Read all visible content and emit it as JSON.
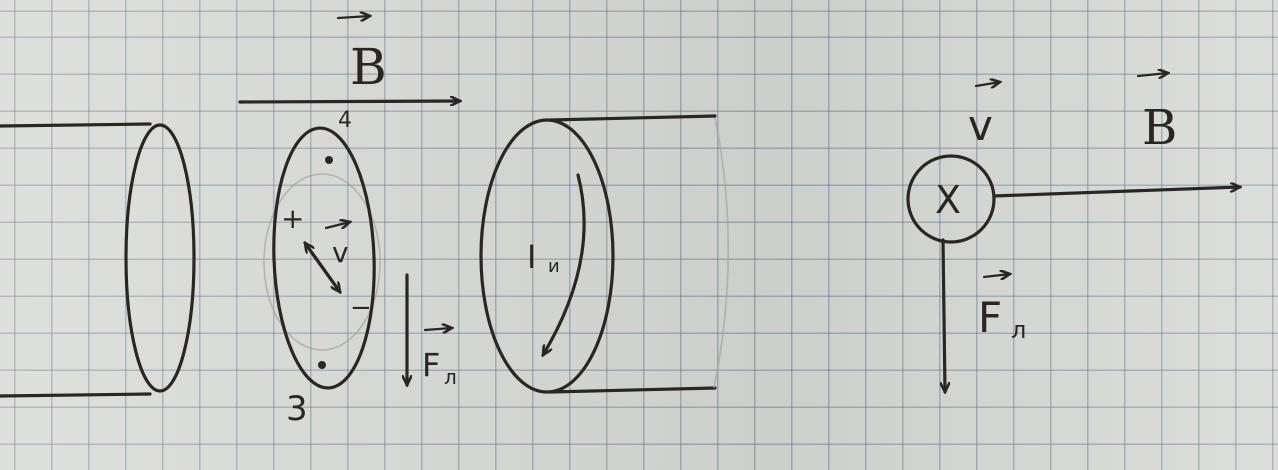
{
  "labels": {
    "b_top": "B",
    "b_right": "B",
    "point_top": "4",
    "point_bottom": "3",
    "plus": "+",
    "minus": "−",
    "velocity_center": "v",
    "current": "I",
    "current_sub": "и",
    "force_center": "F",
    "force_center_sub": "л",
    "velocity_right": "v",
    "cross": "X",
    "force_right": "F",
    "force_right_sub": "л"
  },
  "colors": {
    "ink": "#2b2623",
    "paper": "#d8dad5",
    "grid": "#465f8c"
  }
}
